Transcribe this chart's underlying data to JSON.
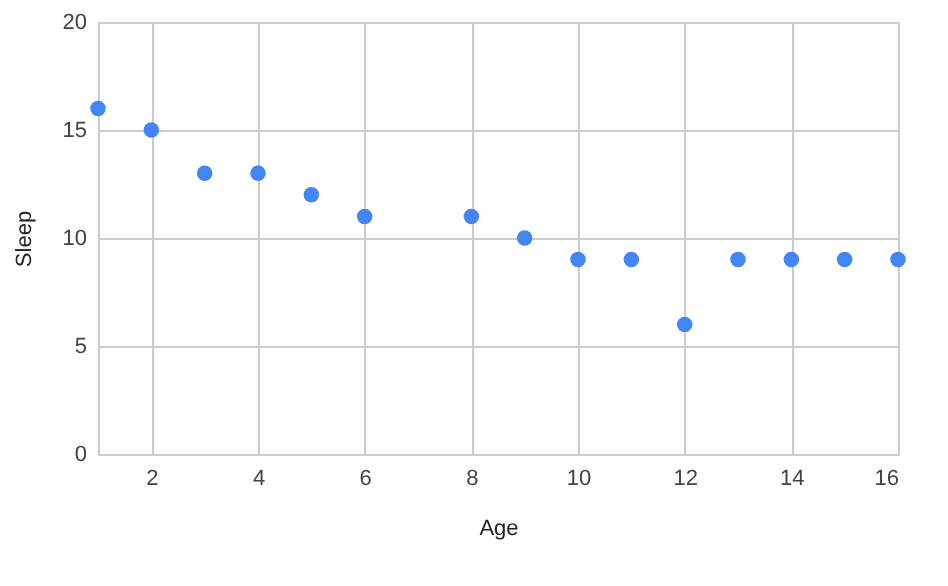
{
  "chart_data": {
    "type": "scatter",
    "xlabel": "Age",
    "ylabel": "Sleep",
    "x": [
      1,
      2,
      3,
      4,
      5,
      6,
      8,
      9,
      10,
      11,
      12,
      13,
      14,
      15,
      16
    ],
    "series": [
      {
        "color": "#4285f4",
        "values": [
          16,
          15,
          13,
          13,
          12,
          11,
          11,
          10,
          9,
          9,
          6,
          9,
          9,
          9,
          9
        ]
      }
    ],
    "xlim": [
      1,
      16
    ],
    "xticks": [
      2,
      4,
      6,
      8,
      10,
      12,
      14,
      16
    ],
    "ylim": [
      0,
      20
    ],
    "yticks": [
      0,
      5,
      10,
      15,
      20
    ],
    "grid": true,
    "marker": "circle"
  }
}
